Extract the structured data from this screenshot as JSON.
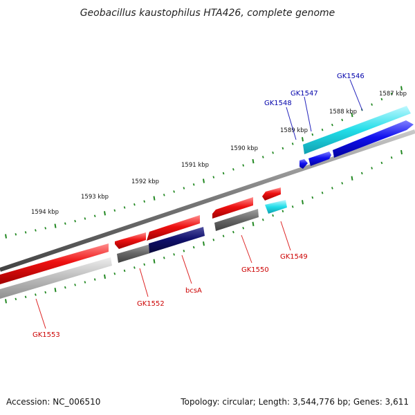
{
  "title": "Geobacillus kaustophilus HTA426, complete genome",
  "footer": {
    "accession": "Accession: NC_006510",
    "summary": "Topology: circular; Length: 3,544,776 bp; Genes: 3,611"
  },
  "colors": {
    "forward_gene": "#ee1111",
    "reverse_gene": "#1111ee",
    "pseudo_forward": "#666666",
    "pseudo_light": "#bbbbbb",
    "navy_gene": "#11116e",
    "cyan_gene": "#22dde8",
    "backbone": "#777777",
    "tick": "#228822",
    "label_forward": "#cc0000",
    "label_reverse": "#0000aa"
  },
  "scale_labels": [
    "1594 kbp",
    "1593 kbp",
    "1592 kbp",
    "1591 kbp",
    "1590 kbp",
    "1589 kbp",
    "1588 kbp",
    "1587 kbp"
  ],
  "gene_labels": [
    {
      "text": "GK1546",
      "strand": "top"
    },
    {
      "text": "GK1547",
      "strand": "top"
    },
    {
      "text": "GK1548",
      "strand": "top"
    },
    {
      "text": "GK1549",
      "strand": "bottom"
    },
    {
      "text": "GK1550",
      "strand": "bottom"
    },
    {
      "text": "bcsA",
      "strand": "bottom"
    },
    {
      "text": "GK1552",
      "strand": "bottom"
    },
    {
      "text": "GK1553",
      "strand": "bottom"
    }
  ]
}
